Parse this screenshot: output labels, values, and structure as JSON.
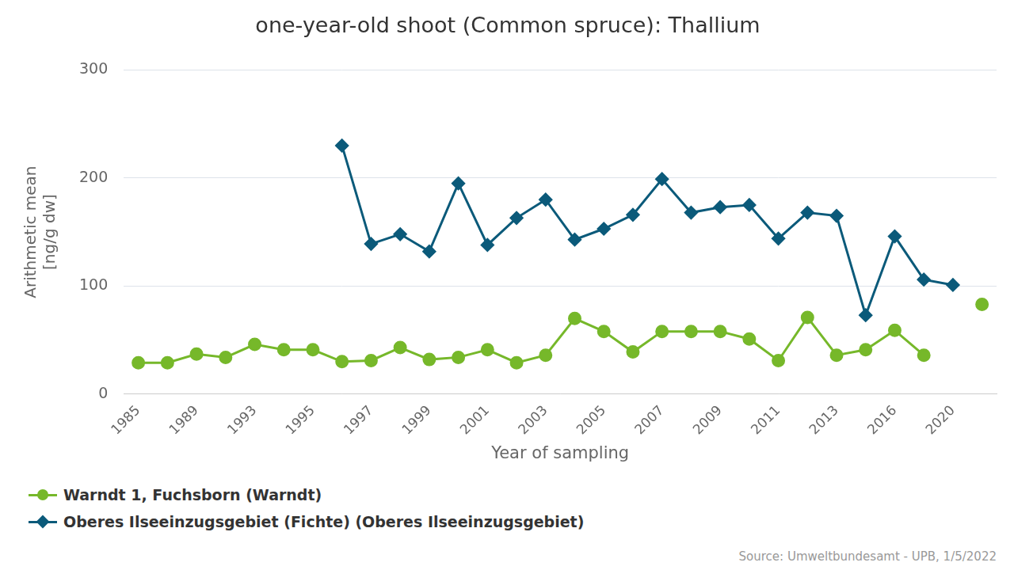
{
  "chart_data": {
    "type": "line",
    "title": "one-year-old shoot (Common spruce): Thallium",
    "x_label": "Year of sampling",
    "y_label": [
      "Arithmetic mean",
      "[ng/g dw]"
    ],
    "source": "Source: Umweltbundesamt - UPB, 1/5/2022",
    "categories": [
      "1985",
      null,
      "1989",
      null,
      "1993",
      null,
      "1995",
      null,
      "1997",
      null,
      "1999",
      null,
      "2001",
      null,
      "2003",
      null,
      "2005",
      null,
      "2007",
      null,
      "2009",
      null,
      "2011",
      null,
      "2013",
      null,
      "2016",
      null,
      "2020",
      null
    ],
    "series": [
      {
        "name": "Warndt 1, Fuchsborn (Warndt)",
        "color": "#76b82a",
        "marker": "circle",
        "values": [
          29,
          29,
          37,
          34,
          46,
          41,
          41,
          30,
          31,
          43,
          32,
          34,
          41,
          29,
          36,
          70,
          58,
          39,
          58,
          58,
          58,
          51,
          31,
          71,
          36,
          41,
          59,
          36,
          null,
          83
        ]
      },
      {
        "name": "Oberes Ilseeinzugsgebiet (Fichte) (Oberes Ilseeinzugsgebiet)",
        "color": "#0b5a7a",
        "marker": "diamond",
        "values": [
          null,
          null,
          null,
          null,
          null,
          null,
          null,
          230,
          139,
          148,
          132,
          195,
          138,
          163,
          180,
          143,
          153,
          166,
          199,
          168,
          173,
          175,
          144,
          168,
          165,
          73,
          146,
          106,
          101,
          null
        ]
      }
    ],
    "ylim": [
      0,
      300
    ],
    "yticks": [
      0,
      100,
      200,
      300
    ],
    "grid": true,
    "legend": "bottom-left"
  }
}
